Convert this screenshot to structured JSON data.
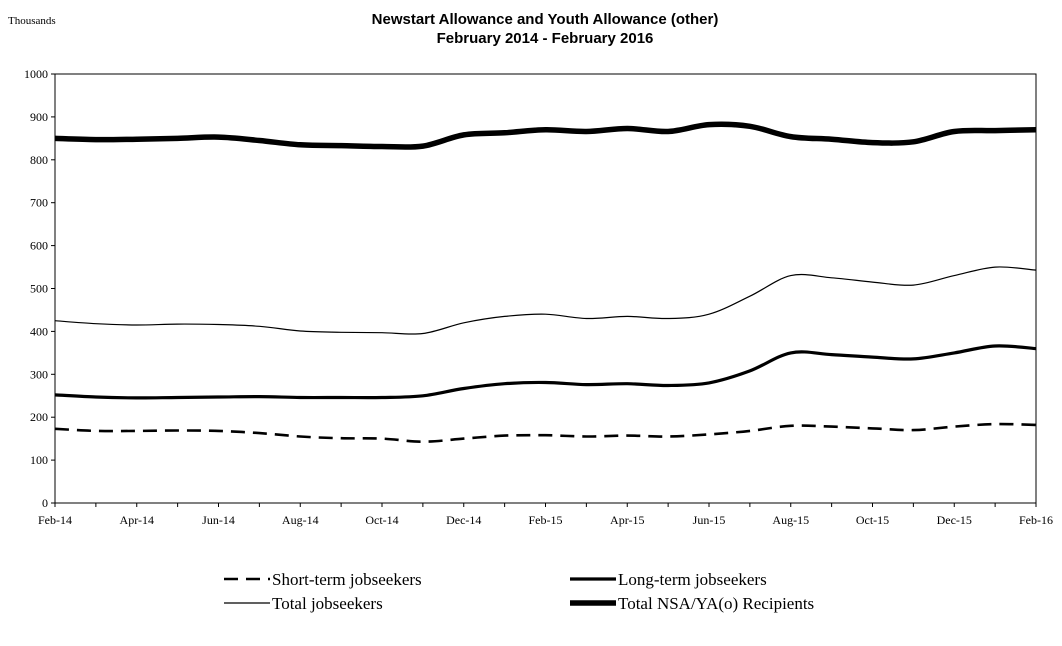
{
  "chart_data": {
    "type": "line",
    "title": "Newstart Allowance and Youth Allowance (other)",
    "subtitle": "February 2014 - February 2016",
    "y_unit_label": "Thousands",
    "ylim": [
      0,
      1000
    ],
    "y_ticks": [
      0,
      100,
      200,
      300,
      400,
      500,
      600,
      700,
      800,
      900,
      1000
    ],
    "grid": false,
    "legend_position": "bottom",
    "x": [
      "Feb-14",
      "Mar-14",
      "Apr-14",
      "May-14",
      "Jun-14",
      "Jul-14",
      "Aug-14",
      "Sep-14",
      "Oct-14",
      "Nov-14",
      "Dec-14",
      "Jan-15",
      "Feb-15",
      "Mar-15",
      "Apr-15",
      "May-15",
      "Jun-15",
      "Jul-15",
      "Aug-15",
      "Sep-15",
      "Oct-15",
      "Nov-15",
      "Dec-15",
      "Jan-16",
      "Feb-16"
    ],
    "x_tick_labels": [
      "Feb-14",
      "Apr-14",
      "Jun-14",
      "Aug-14",
      "Oct-14",
      "Dec-14",
      "Feb-15",
      "Apr-15",
      "Jun-15",
      "Aug-15",
      "Oct-15",
      "Dec-15",
      "Feb-16"
    ],
    "series": [
      {
        "name": "Short-term jobseekers",
        "style": "dashed",
        "color": "#000000",
        "values": [
          173,
          168,
          168,
          169,
          168,
          163,
          155,
          151,
          150,
          143,
          150,
          157,
          158,
          155,
          157,
          155,
          160,
          168,
          180,
          178,
          174,
          170,
          178,
          184,
          182
        ]
      },
      {
        "name": "Long-term jobseekers",
        "style": "medium",
        "color": "#000000",
        "values": [
          252,
          247,
          245,
          246,
          247,
          248,
          246,
          246,
          246,
          250,
          267,
          278,
          281,
          276,
          278,
          274,
          280,
          308,
          350,
          346,
          340,
          336,
          350,
          366,
          360
        ]
      },
      {
        "name": "Total jobseekers",
        "style": "thin",
        "color": "#000000",
        "values": [
          425,
          418,
          415,
          417,
          416,
          412,
          401,
          398,
          397,
          395,
          420,
          435,
          440,
          430,
          435,
          430,
          440,
          482,
          530,
          525,
          515,
          508,
          530,
          550,
          543
        ]
      },
      {
        "name": "Total NSA/YA(o) Recipients",
        "style": "thick",
        "color": "#000000",
        "values": [
          850,
          847,
          848,
          850,
          853,
          845,
          835,
          833,
          831,
          832,
          858,
          863,
          870,
          866,
          873,
          866,
          882,
          878,
          854,
          848,
          840,
          842,
          866,
          868,
          870
        ]
      }
    ]
  }
}
